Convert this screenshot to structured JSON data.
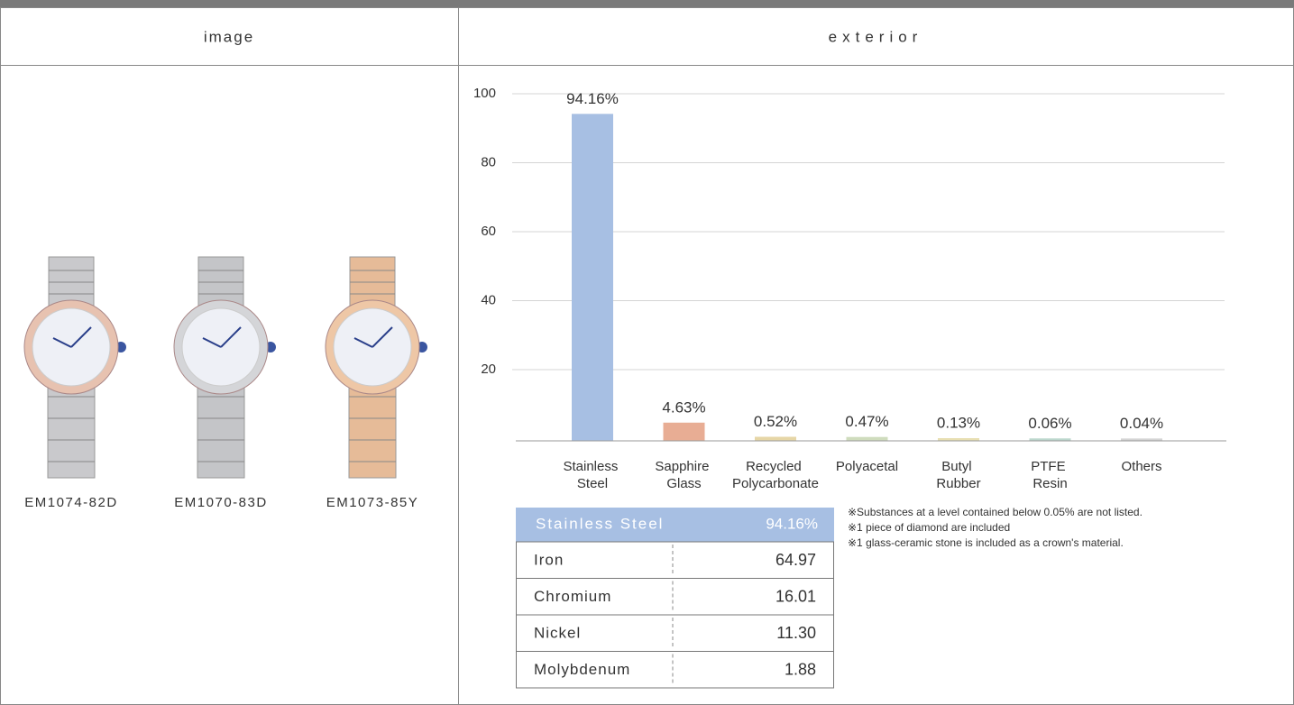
{
  "header": {
    "columns": [
      "image",
      "exterior"
    ]
  },
  "models": [
    "EM1074-82D",
    "EM1070-83D",
    "EM1073-85Y"
  ],
  "chart_data": {
    "type": "bar",
    "categories": [
      "Stainless Steel",
      "Sapphire Glass",
      "Recycled Polycarbonate",
      "Polyacetal",
      "Butyl Rubber",
      "PTFE Resin",
      "Others"
    ],
    "values": [
      94.16,
      4.63,
      0.52,
      0.47,
      0.13,
      0.06,
      0.04
    ],
    "value_labels": [
      "94.16%",
      "4.63%",
      "0.52%",
      "0.47%",
      "0.13%",
      "0.06%",
      "0.04%"
    ],
    "colors": [
      "#a7bfe3",
      "#e8ad94",
      "#e6d6a6",
      "#cfdcbd",
      "#e8dfb2",
      "#bcd7cd",
      "#d4d4d4"
    ],
    "ylim": [
      0,
      100
    ],
    "yticks": [
      20,
      40,
      60,
      80,
      100
    ],
    "grid": true
  },
  "composition": {
    "header": [
      "Stainless Steel",
      "94.16%"
    ],
    "rows": [
      [
        "Iron",
        "64.97"
      ],
      [
        "Chromium",
        "16.01"
      ],
      [
        "Nickel",
        "11.30"
      ],
      [
        "Molybdenum",
        "1.88"
      ]
    ]
  },
  "notes": [
    "※Substances at a level contained below 0.05% are not listed.",
    "※1 piece of diamond are included",
    "※1 glass-ceramic stone is included as a crown's material."
  ]
}
